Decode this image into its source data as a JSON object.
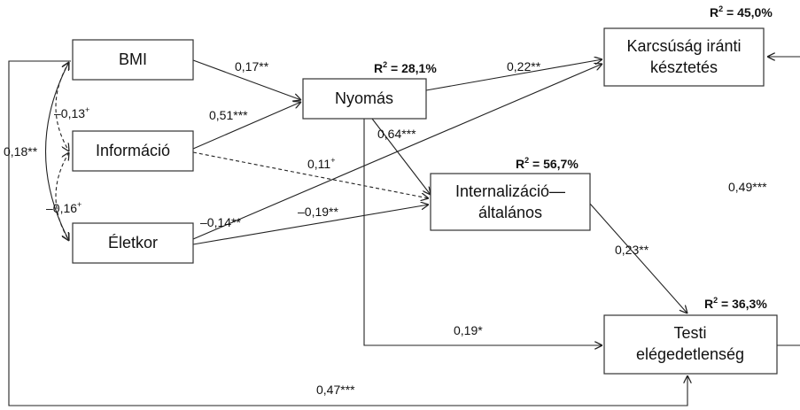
{
  "nodes": {
    "bmi": {
      "lines": [
        "BMI"
      ]
    },
    "informacio": {
      "lines": [
        "Információ"
      ]
    },
    "eletkor": {
      "lines": [
        "Életkor"
      ]
    },
    "nyomas": {
      "lines": [
        "Nyomás"
      ]
    },
    "karcsusag": {
      "lines": [
        "Karcsúság iránti",
        "késztetés"
      ]
    },
    "internalizacio": {
      "lines": [
        "Internalizáció—",
        "általános"
      ]
    },
    "testi": {
      "lines": [
        "Testi",
        "elégedetlenség"
      ]
    }
  },
  "r_squared": {
    "karcsusag": {
      "prefix": "R",
      "sup": "2",
      "value": " = 45,0%"
    },
    "nyomas": {
      "prefix": "R",
      "sup": "2",
      "value": " = 28,1%"
    },
    "internalizacio": {
      "prefix": "R",
      "sup": "2",
      "value": " = 56,7%"
    },
    "testi": {
      "prefix": "R",
      "sup": "2",
      "value": " = 36,3%"
    }
  },
  "coefficients": {
    "bmi_nyomas": {
      "value": "0,17**",
      "sup": ""
    },
    "info_nyomas": {
      "value": "0,51***",
      "sup": ""
    },
    "nyomas_karcsusag": {
      "value": "0,22**",
      "sup": ""
    },
    "nyomas_internalizacio": {
      "value": "0,64***",
      "sup": ""
    },
    "info_internalizacio": {
      "value": "0,11",
      "sup": "+"
    },
    "eletkor_karcsusag": {
      "value": "–0,14**",
      "sup": ""
    },
    "eletkor_internalizacio": {
      "value": "–0,19**",
      "sup": ""
    },
    "internalizacio_testi": {
      "value": "0,23**",
      "sup": ""
    },
    "nyomas_testi": {
      "value": "0,19*",
      "sup": ""
    },
    "eletkor_testi": {
      "value": "0,47***",
      "sup": ""
    },
    "testi_karcsusag": {
      "value": "0,49***",
      "sup": ""
    },
    "cov_bmi_info": {
      "value": "–0,13",
      "sup": "+"
    },
    "cov_bmi_eletkor": {
      "value": "0,18**",
      "sup": ""
    },
    "cov_info_eletkor": {
      "value": "–0,16",
      "sup": "+"
    }
  }
}
